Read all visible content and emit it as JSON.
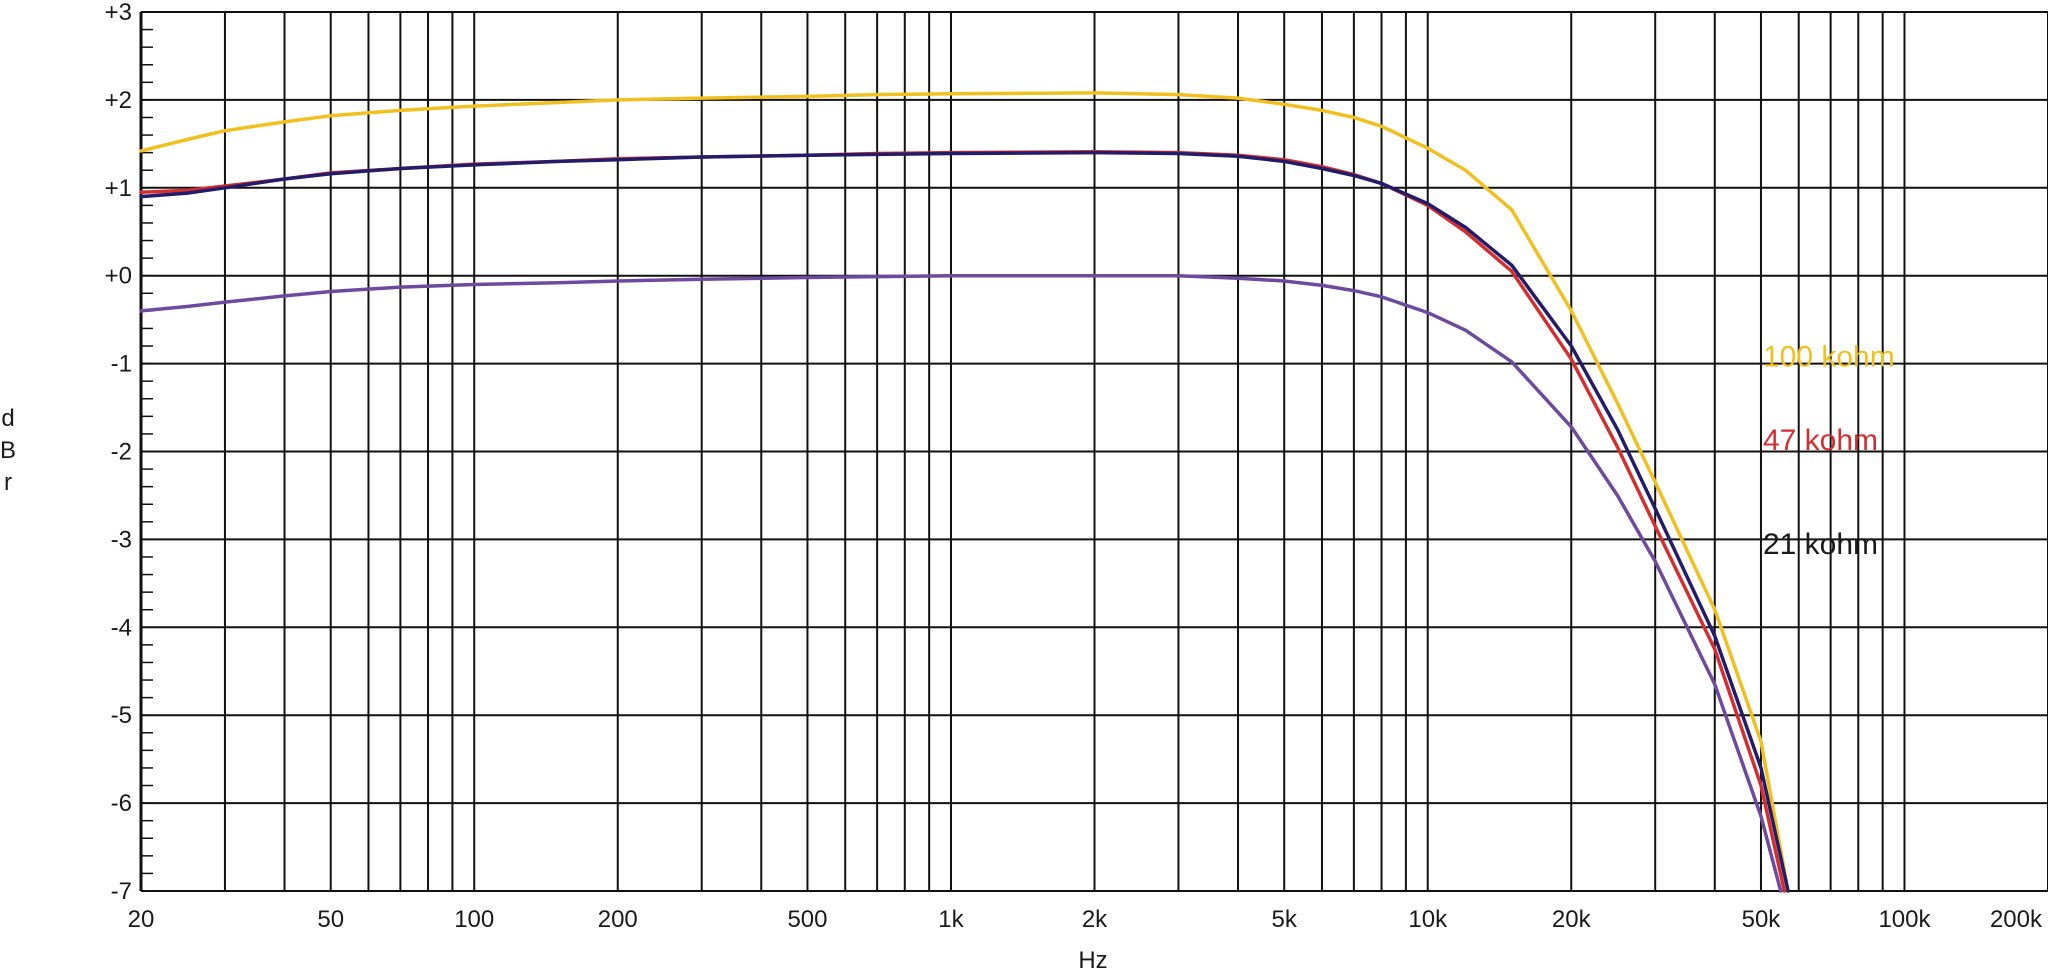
{
  "chart_data": {
    "type": "line",
    "xlabel": "Hz",
    "ylabel": "dBr",
    "x_scale": "log",
    "xlim": [
      20,
      200000
    ],
    "ylim": [
      -7,
      3
    ],
    "grid": true,
    "x_tick_labels": [
      {
        "value": 20,
        "label": "20"
      },
      {
        "value": 50,
        "label": "50"
      },
      {
        "value": 100,
        "label": "100"
      },
      {
        "value": 200,
        "label": "200"
      },
      {
        "value": 500,
        "label": "500"
      },
      {
        "value": 1000,
        "label": "1k"
      },
      {
        "value": 2000,
        "label": "2k"
      },
      {
        "value": 5000,
        "label": "5k"
      },
      {
        "value": 10000,
        "label": "10k"
      },
      {
        "value": 20000,
        "label": "20k"
      },
      {
        "value": 50000,
        "label": "50k"
      },
      {
        "value": 100000,
        "label": "100k"
      },
      {
        "value": 200000,
        "label": "200k"
      }
    ],
    "y_tick_labels": [
      {
        "value": 3,
        "label": "+3"
      },
      {
        "value": 2,
        "label": "+2"
      },
      {
        "value": 1,
        "label": "+1"
      },
      {
        "value": 0,
        "label": "+0"
      },
      {
        "value": -1,
        "label": "-1"
      },
      {
        "value": -2,
        "label": "-2"
      },
      {
        "value": -3,
        "label": "-3"
      },
      {
        "value": -4,
        "label": "-4"
      },
      {
        "value": -5,
        "label": "-5"
      },
      {
        "value": -6,
        "label": "-6"
      },
      {
        "value": -7,
        "label": "-7"
      }
    ],
    "series": [
      {
        "name": "100 kohm",
        "color": "#f2c01e",
        "x": [
          20,
          25,
          30,
          40,
          50,
          70,
          100,
          150,
          200,
          300,
          500,
          700,
          1000,
          2000,
          3000,
          4000,
          5000,
          6000,
          7000,
          8000,
          10000,
          12000,
          15000,
          20000,
          25000,
          30000,
          40000,
          50000,
          57000
        ],
        "y": [
          1.42,
          1.55,
          1.65,
          1.75,
          1.82,
          1.88,
          1.93,
          1.97,
          2.0,
          2.02,
          2.04,
          2.06,
          2.07,
          2.08,
          2.06,
          2.02,
          1.95,
          1.88,
          1.8,
          1.7,
          1.45,
          1.2,
          0.75,
          -0.4,
          -1.45,
          -2.35,
          -3.8,
          -5.3,
          -7.0
        ]
      },
      {
        "name": "47 kohm",
        "color": "#d32f2f",
        "x": [
          20,
          25,
          30,
          40,
          50,
          70,
          100,
          150,
          200,
          300,
          500,
          700,
          1000,
          2000,
          3000,
          4000,
          5000,
          6000,
          7000,
          8000,
          10000,
          12000,
          15000,
          20000,
          25000,
          30000,
          40000,
          50000,
          56000
        ],
        "y": [
          0.95,
          0.97,
          1.02,
          1.1,
          1.17,
          1.22,
          1.27,
          1.3,
          1.33,
          1.35,
          1.37,
          1.39,
          1.4,
          1.41,
          1.4,
          1.37,
          1.32,
          1.24,
          1.15,
          1.05,
          0.8,
          0.5,
          0.05,
          -0.95,
          -1.95,
          -2.85,
          -4.25,
          -5.8,
          -7.0
        ]
      },
      {
        "name": "21 kohm",
        "color": "#231c6a",
        "x": [
          20,
          25,
          30,
          40,
          50,
          70,
          100,
          150,
          200,
          300,
          500,
          700,
          1000,
          2000,
          3000,
          4000,
          5000,
          6000,
          7000,
          8000,
          10000,
          12000,
          15000,
          20000,
          25000,
          30000,
          40000,
          50000,
          57000
        ],
        "y": [
          0.9,
          0.94,
          1.0,
          1.1,
          1.16,
          1.22,
          1.26,
          1.3,
          1.32,
          1.35,
          1.37,
          1.38,
          1.39,
          1.4,
          1.39,
          1.36,
          1.3,
          1.22,
          1.14,
          1.05,
          0.82,
          0.55,
          0.12,
          -0.8,
          -1.75,
          -2.65,
          -4.1,
          -5.6,
          -7.0
        ]
      },
      {
        "name": "",
        "color": "#6e4a9e",
        "x": [
          20,
          25,
          30,
          40,
          50,
          70,
          100,
          150,
          200,
          300,
          500,
          700,
          1000,
          2000,
          3000,
          4000,
          5000,
          6000,
          7000,
          8000,
          10000,
          12000,
          15000,
          20000,
          25000,
          30000,
          40000,
          50000,
          55000
        ],
        "y": [
          -0.4,
          -0.35,
          -0.3,
          -0.23,
          -0.18,
          -0.13,
          -0.1,
          -0.08,
          -0.06,
          -0.04,
          -0.02,
          -0.01,
          0.0,
          0.0,
          0.0,
          -0.03,
          -0.06,
          -0.11,
          -0.17,
          -0.24,
          -0.42,
          -0.62,
          -0.98,
          -1.72,
          -2.5,
          -3.25,
          -4.65,
          -6.15,
          -7.0
        ]
      }
    ],
    "annotations": [
      {
        "text": "100 kohm",
        "color": "#f2c01e",
        "x": 50000,
        "y": -0.92
      },
      {
        "text": "47 kohm",
        "color": "#d32f2f",
        "x": 50000,
        "y": -1.87
      },
      {
        "text": "21 kohm",
        "color": "#1a1a1a",
        "x": 50000,
        "y": -3.05
      }
    ]
  }
}
